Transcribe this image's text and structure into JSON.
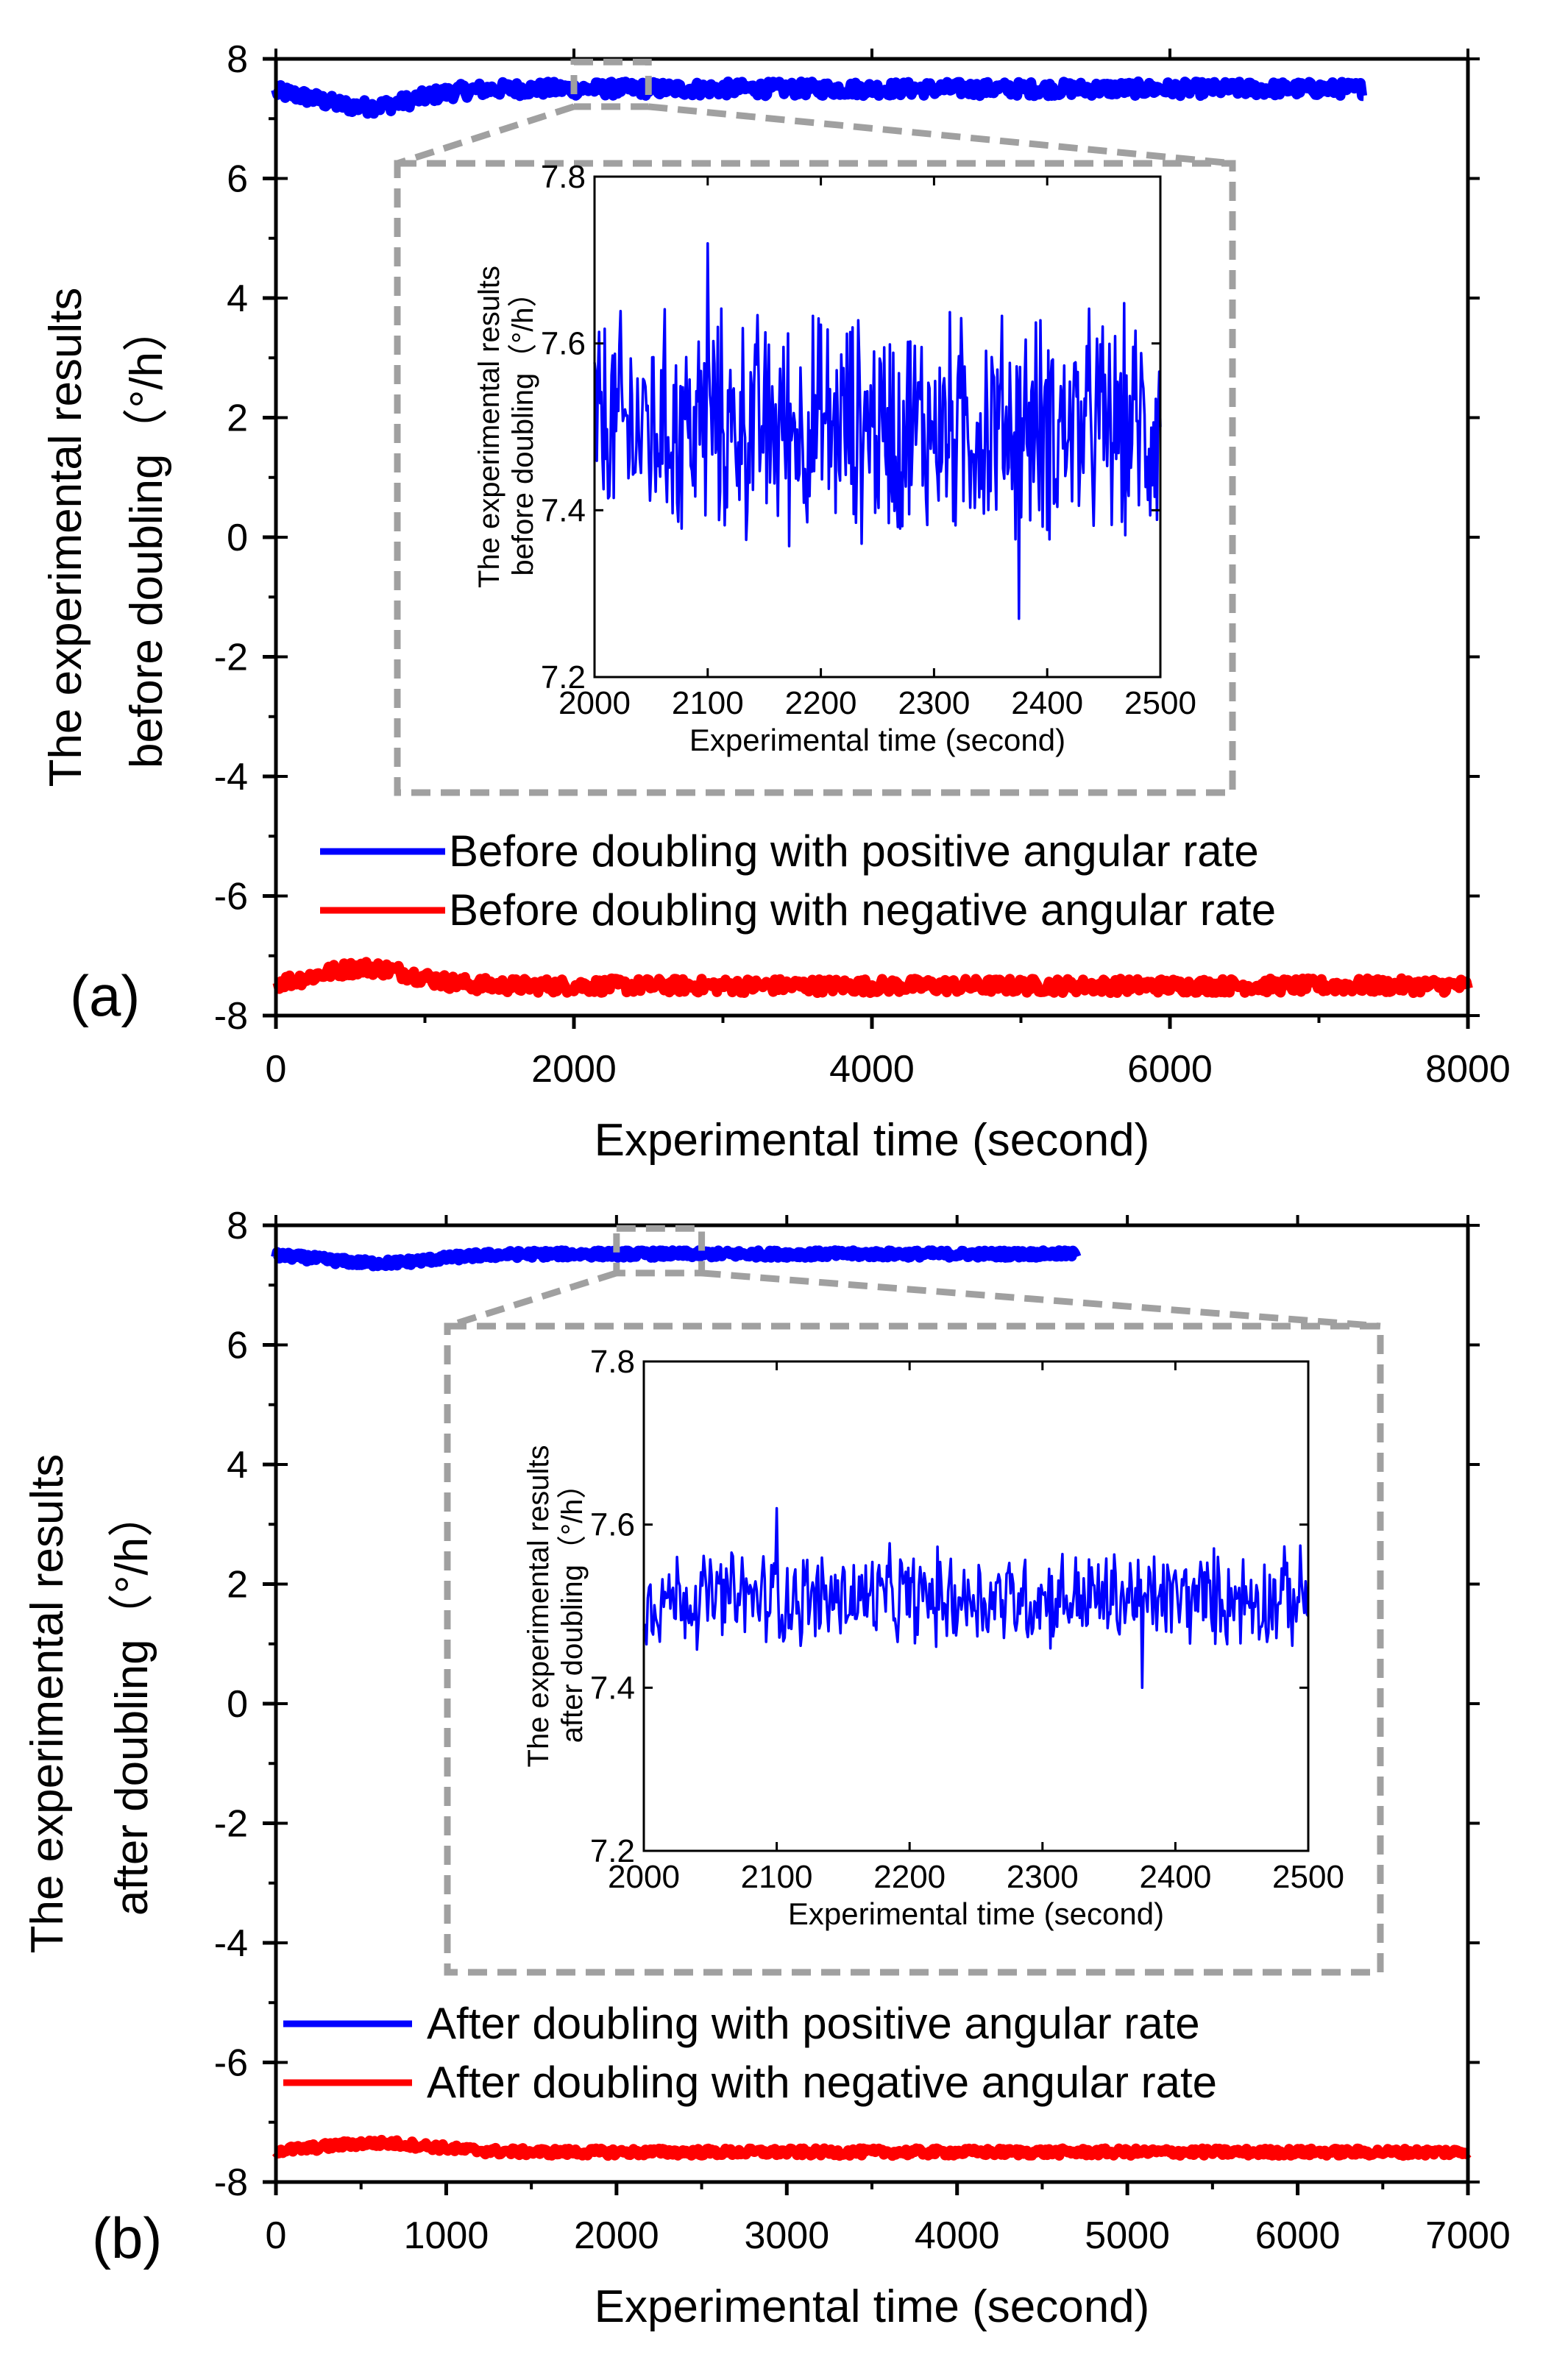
{
  "chart_data": [
    {
      "panel_label": "(a)",
      "type": "line",
      "ylabel_lines": [
        "The experimental results",
        "before doubling（°/h）"
      ],
      "xlabel": "Experimental time (second)",
      "xlim": [
        0,
        8000
      ],
      "ylim": [
        -8,
        8
      ],
      "xticks": [
        0,
        2000,
        4000,
        6000,
        8000
      ],
      "yticks": [
        8,
        6,
        4,
        2,
        0,
        -2,
        -4,
        -6,
        -8
      ],
      "legend_position": "lower-left",
      "series": [
        {
          "name": "Before doubling with positive angular rate",
          "color": "#0000ff",
          "x_end": 7300,
          "level": 7.5,
          "noise": 0.12,
          "dip": 0.3
        },
        {
          "name": "Before doubling with negative angular rate",
          "color": "#ff0000",
          "x_end": 8000,
          "level": -7.5,
          "noise": 0.12,
          "dip": -0.3
        }
      ],
      "zoom_box": {
        "xlim": [
          2000,
          2500
        ],
        "ylim": [
          7.3,
          7.8
        ]
      },
      "inset": {
        "xlabel": "Experimental time (second)",
        "ylabel_lines": [
          "The experimental results",
          "before doubling（°/h）"
        ],
        "xlim": [
          2000,
          2500
        ],
        "ylim": [
          7.2,
          7.8
        ],
        "xticks": [
          2000,
          2100,
          2200,
          2300,
          2400,
          2500
        ],
        "yticks": [
          "7.8",
          "7.6",
          "7.4",
          "7.2"
        ],
        "series_color": "#0000ff",
        "mean": 7.5,
        "amplitude": 0.16,
        "min_observed": 7.27,
        "max_observed": 7.72
      }
    },
    {
      "panel_label": "(b)",
      "type": "line",
      "ylabel_lines": [
        "The experimental results",
        "after doubling（°/h）"
      ],
      "xlabel": "Experimental time (second)",
      "xlim": [
        0,
        7000
      ],
      "ylim": [
        -8,
        8
      ],
      "xticks": [
        0,
        1000,
        2000,
        3000,
        4000,
        5000,
        6000,
        7000
      ],
      "yticks": [
        8,
        6,
        4,
        2,
        0,
        -2,
        -4,
        -6,
        -8
      ],
      "legend_position": "lower-left",
      "series": [
        {
          "name": "After doubling with positive angular rate",
          "color": "#0000ff",
          "x_end": 4700,
          "level": 7.52,
          "noise": 0.06,
          "dip": 0.15
        },
        {
          "name": "After doubling with negative angular rate",
          "color": "#ff0000",
          "x_end": 7000,
          "level": -7.5,
          "noise": 0.06,
          "dip": -0.15
        }
      ],
      "zoom_box": {
        "xlim": [
          2000,
          2500
        ],
        "ylim": [
          7.3,
          7.8
        ]
      },
      "inset": {
        "xlabel": "Experimental time (second)",
        "ylabel_lines": [
          "The experimental results",
          "after doubling（°/h）"
        ],
        "xlim": [
          2000,
          2500
        ],
        "ylim": [
          7.2,
          7.8
        ],
        "xticks": [
          2000,
          2100,
          2200,
          2300,
          2400,
          2500
        ],
        "yticks": [
          "7.8",
          "7.6",
          "7.4",
          "7.2"
        ],
        "series_color": "#0000ff",
        "mean": 7.51,
        "amplitude": 0.07,
        "min_observed": 7.4,
        "max_observed": 7.62
      }
    }
  ]
}
